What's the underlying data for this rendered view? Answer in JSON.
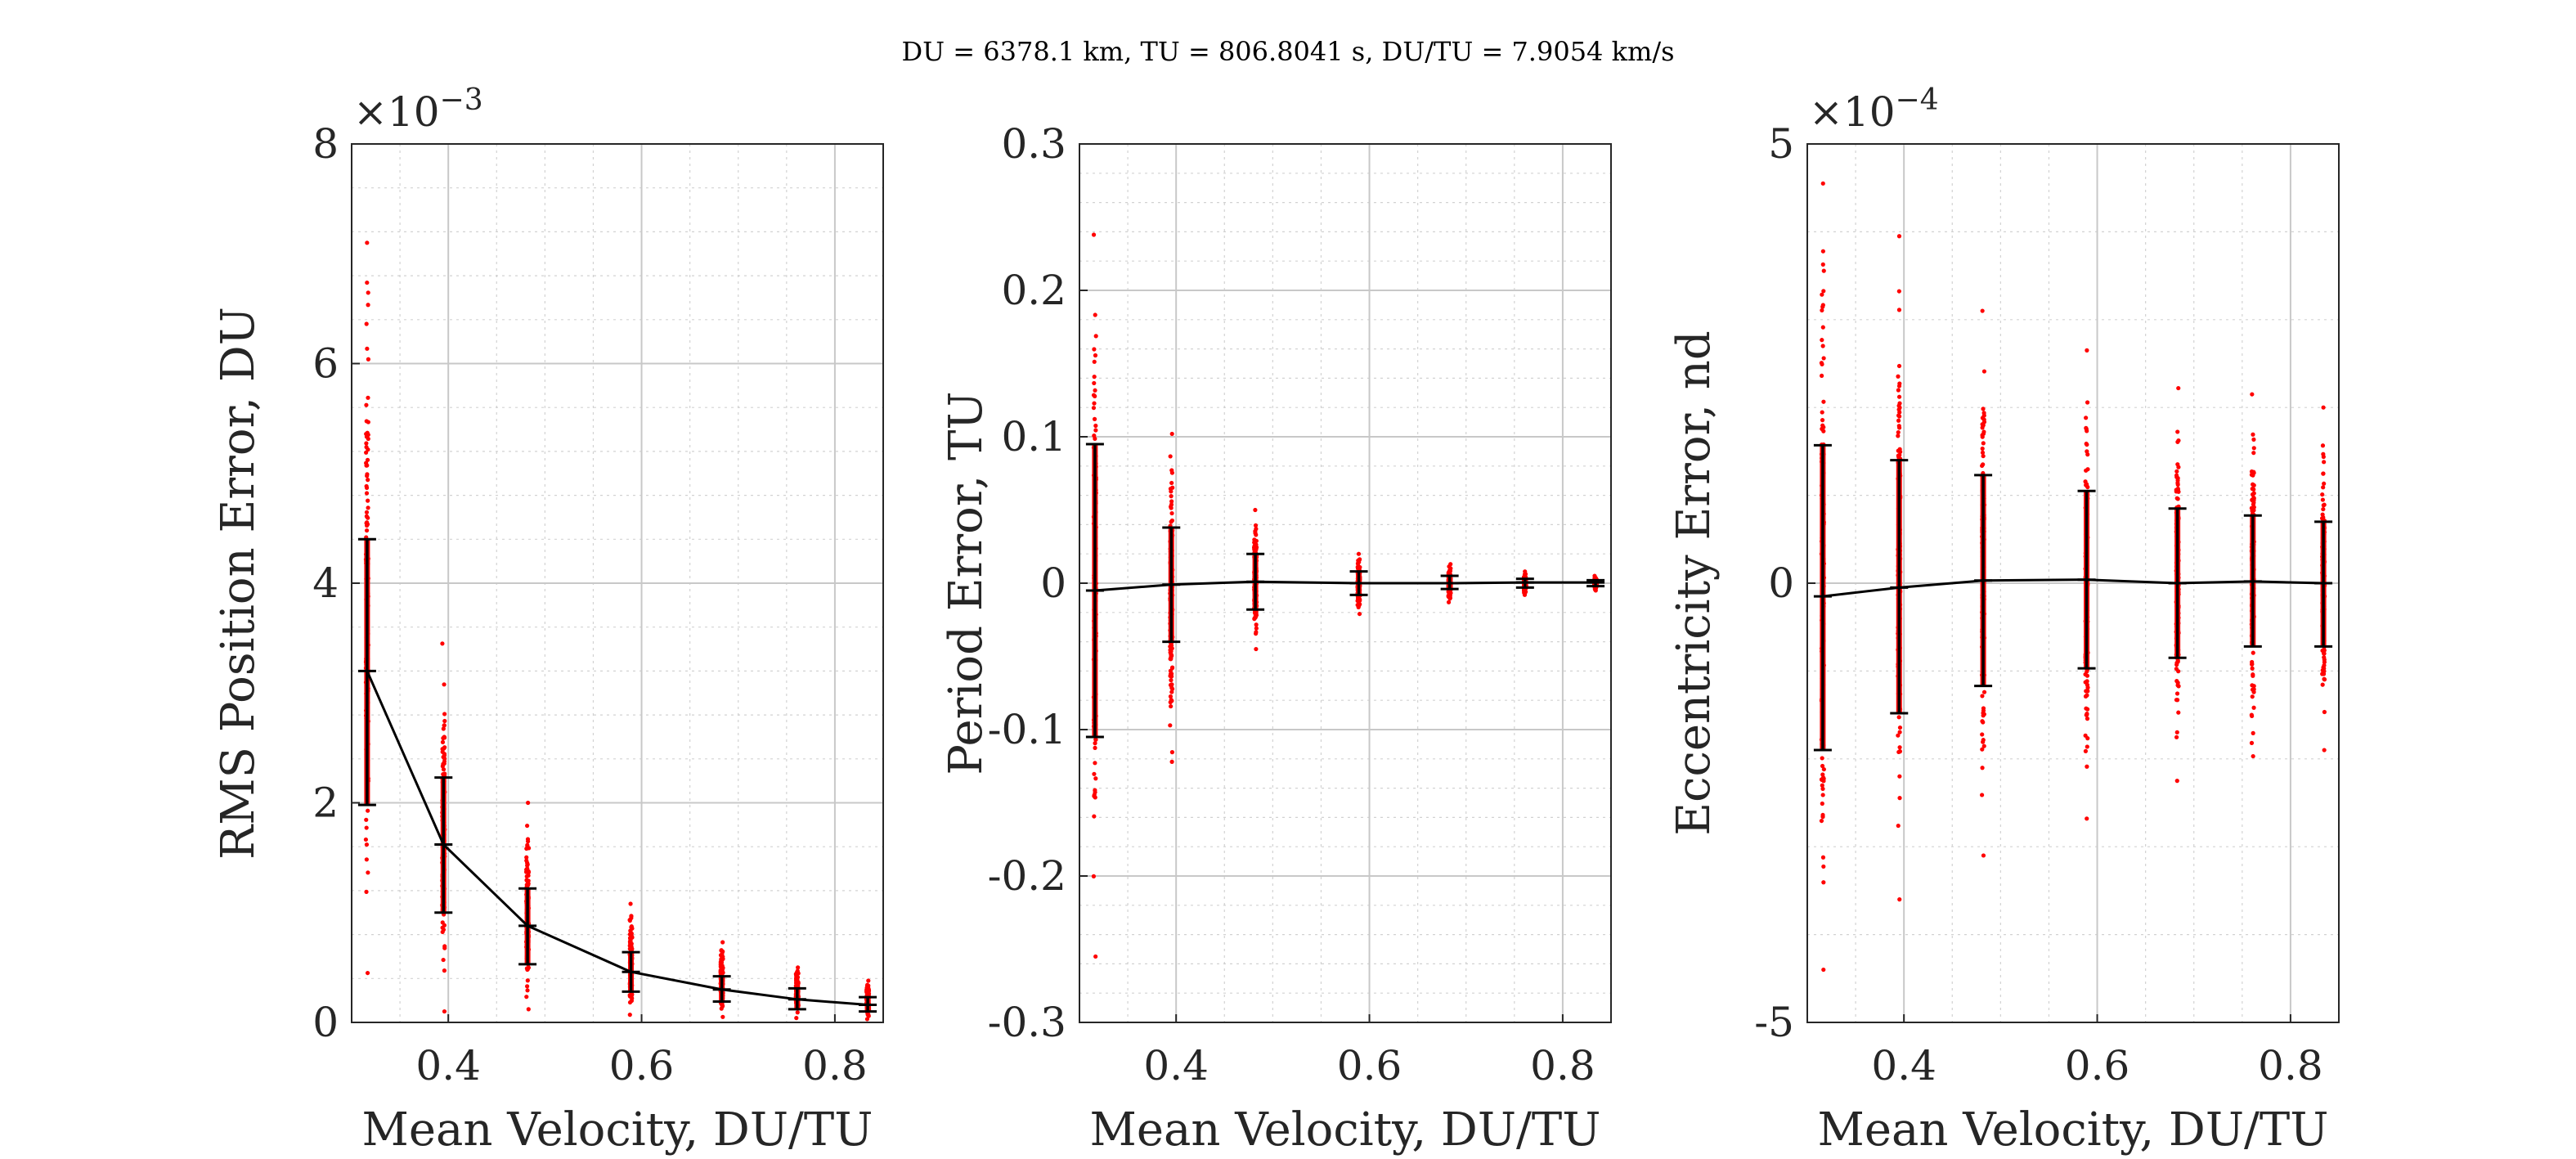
{
  "figure_title": "DU = 6378.1 km, TU = 806.8041 s, DU/TU = 7.9054 km/s",
  "colors": {
    "scatter": "#ff0000",
    "mean_line": "#000000",
    "errorbar": "#000000",
    "grid": "#c8c8c8",
    "axes": "#262626"
  },
  "chart_data": [
    {
      "type": "scatter",
      "xlabel": "Mean Velocity, DU/TU",
      "ylabel": "RMS Position Error, DU",
      "exponent": "×10",
      "exponent_power": "−3",
      "xlim": [
        0.3,
        0.85
      ],
      "ylim": [
        0,
        0.008
      ],
      "xticks": [
        0.4,
        0.6,
        0.8
      ],
      "xtick_labels": [
        "0.4",
        "0.6",
        "0.8"
      ],
      "yticks": [
        0,
        0.002,
        0.004,
        0.006,
        0.008
      ],
      "ytick_labels": [
        "0",
        "2",
        "4",
        "6",
        "8"
      ],
      "grid": true,
      "x": [
        0.316,
        0.395,
        0.482,
        0.589,
        0.683,
        0.761,
        0.834
      ],
      "mean": [
        0.0032,
        0.00162,
        0.00088,
        0.00046,
        0.0003,
        0.00021,
        0.00016
      ],
      "err_low": [
        0.00198,
        0.001,
        0.00053,
        0.00028,
        0.00019,
        0.00012,
        0.0001
      ],
      "err_high": [
        0.0044,
        0.00223,
        0.00122,
        0.00064,
        0.00042,
        0.00031,
        0.00023
      ],
      "scatter_min": [
        0.00045,
        0.0001,
        0.00012,
        7e-05,
        5e-05,
        4e-05,
        3e-05
      ],
      "scatter_max": [
        0.0071,
        0.00345,
        0.002,
        0.00108,
        0.00073,
        0.0005,
        0.00038
      ]
    },
    {
      "type": "scatter",
      "xlabel": "Mean Velocity, DU/TU",
      "ylabel": "Period Error, TU",
      "exponent": "",
      "exponent_power": "",
      "xlim": [
        0.3,
        0.85
      ],
      "ylim": [
        -0.3,
        0.3
      ],
      "xticks": [
        0.4,
        0.6,
        0.8
      ],
      "xtick_labels": [
        "0.4",
        "0.6",
        "0.8"
      ],
      "yticks": [
        -0.3,
        -0.2,
        -0.1,
        0,
        0.1,
        0.2,
        0.3
      ],
      "ytick_labels": [
        "-0.3",
        "-0.2",
        "-0.1",
        "0",
        "0.1",
        "0.2",
        "0.3"
      ],
      "grid": true,
      "x": [
        0.316,
        0.395,
        0.482,
        0.589,
        0.683,
        0.761,
        0.834
      ],
      "mean": [
        -0.005,
        -0.001,
        0.001,
        0.0,
        0.0,
        0.0005,
        0.0005
      ],
      "err_low": [
        -0.105,
        -0.04,
        -0.018,
        -0.008,
        -0.004,
        -0.003,
        -0.002
      ],
      "err_high": [
        0.095,
        0.038,
        0.02,
        0.008,
        0.005,
        0.003,
        0.002
      ],
      "scatter_min": [
        -0.255,
        -0.122,
        -0.045,
        -0.021,
        -0.013,
        -0.008,
        -0.005
      ],
      "scatter_max": [
        0.238,
        0.102,
        0.05,
        0.02,
        0.013,
        0.008,
        0.005
      ]
    },
    {
      "type": "scatter",
      "xlabel": "Mean Velocity, DU/TU",
      "ylabel": "Eccentricity Error, nd",
      "exponent": "×10",
      "exponent_power": "−4",
      "xlim": [
        0.3,
        0.85
      ],
      "ylim": [
        -0.0005,
        0.0005
      ],
      "xticks": [
        0.4,
        0.6,
        0.8
      ],
      "xtick_labels": [
        "0.4",
        "0.6",
        "0.8"
      ],
      "yticks": [
        -0.0005,
        0,
        0.0005
      ],
      "ytick_labels": [
        "-5",
        "0",
        "5"
      ],
      "grid": true,
      "x": [
        0.316,
        0.395,
        0.482,
        0.589,
        0.683,
        0.761,
        0.834
      ],
      "mean": [
        -1.5e-05,
        -5e-06,
        3e-06,
        4e-06,
        0.0,
        2e-06,
        0.0
      ],
      "err_low": [
        -0.00019,
        -0.000148,
        -0.000117,
        -9.7e-05,
        -8.5e-05,
        -7.2e-05,
        -7.2e-05
      ],
      "err_high": [
        0.000157,
        0.00014,
        0.000123,
        0.000105,
        8.5e-05,
        7.7e-05,
        7e-05
      ],
      "scatter_min": [
        -0.00044,
        -0.00036,
        -0.00031,
        -0.000268,
        -0.000225,
        -0.000197,
        -0.00019
      ],
      "scatter_max": [
        0.000455,
        0.000395,
        0.00031,
        0.000265,
        0.000222,
        0.000215,
        0.0002
      ]
    }
  ]
}
